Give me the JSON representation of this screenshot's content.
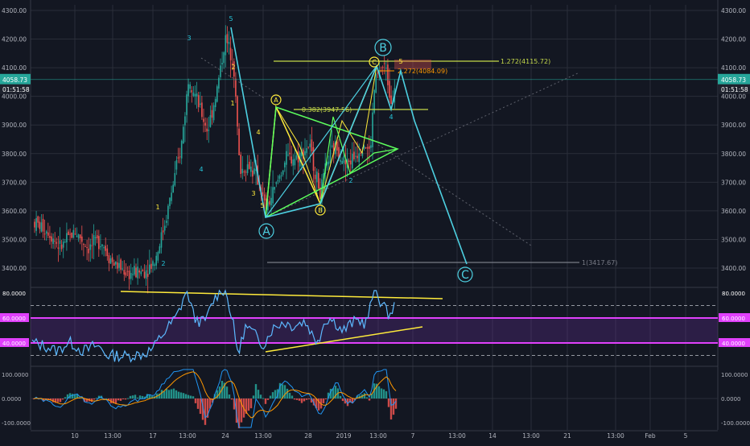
{
  "chart_data": {
    "type": "candlestick",
    "price_axis": {
      "ticks": [
        "4300.00",
        "4200.00",
        "4100.00",
        "4000.00",
        "3900.00",
        "3800.00",
        "3700.00",
        "3600.00",
        "3500.00",
        "3400.00"
      ],
      "tick_values": [
        4300,
        4200,
        4100,
        4000,
        3900,
        3800,
        3700,
        3600,
        3500,
        3400
      ],
      "current_price": "4058.73",
      "countdown": "01:51:58",
      "range": [
        3330,
        4330
      ]
    },
    "time_axis": {
      "labels": [
        "10",
        "13:00",
        "17",
        "13:00",
        "24",
        "13:00",
        "28",
        "2019",
        "13:00",
        "7",
        "13:00",
        "14",
        "13:00",
        "21",
        "13:00",
        "Feb",
        "5"
      ]
    },
    "elliott_labels": [
      "1",
      "2",
      "3",
      "4",
      "5",
      "1",
      "2",
      "3",
      "4",
      "5",
      "A",
      "B",
      "C",
      "A",
      "B",
      "C",
      "1",
      "2",
      "3",
      "4",
      "5"
    ],
    "fib_labels": {
      "f1272": "1.272(4115.72)",
      "f2272": "2.272(4084.09)",
      "f0382": "0.382(3947.56)",
      "f1": "1(3417.67)"
    },
    "rsi": {
      "ticks": [
        "80.0000",
        "60.0000",
        "40.0000"
      ],
      "left_ticks": [
        "80.0000",
        "60.0000",
        "40.0000"
      ],
      "range": [
        20,
        85
      ],
      "upper_band": 70,
      "lower_band": 30,
      "line_60": 60,
      "line_40": 40
    },
    "macd": {
      "ticks": [
        "100.0000",
        "0.0000",
        "-100.0000"
      ],
      "range": [
        -130,
        130
      ]
    },
    "colors": {
      "background": "#131722",
      "up": "#26a69a",
      "down": "#ef5350",
      "wave_line": "#4dd0e1",
      "triangle": "#5dff5d",
      "zigzag": "#ffeb3b",
      "fib_line": "#c5d94a",
      "rsi_line": "#5cb8ff",
      "rsi_band": "#e040fb",
      "macd_line": "#2196f3",
      "signal_line": "#ff9800"
    }
  }
}
